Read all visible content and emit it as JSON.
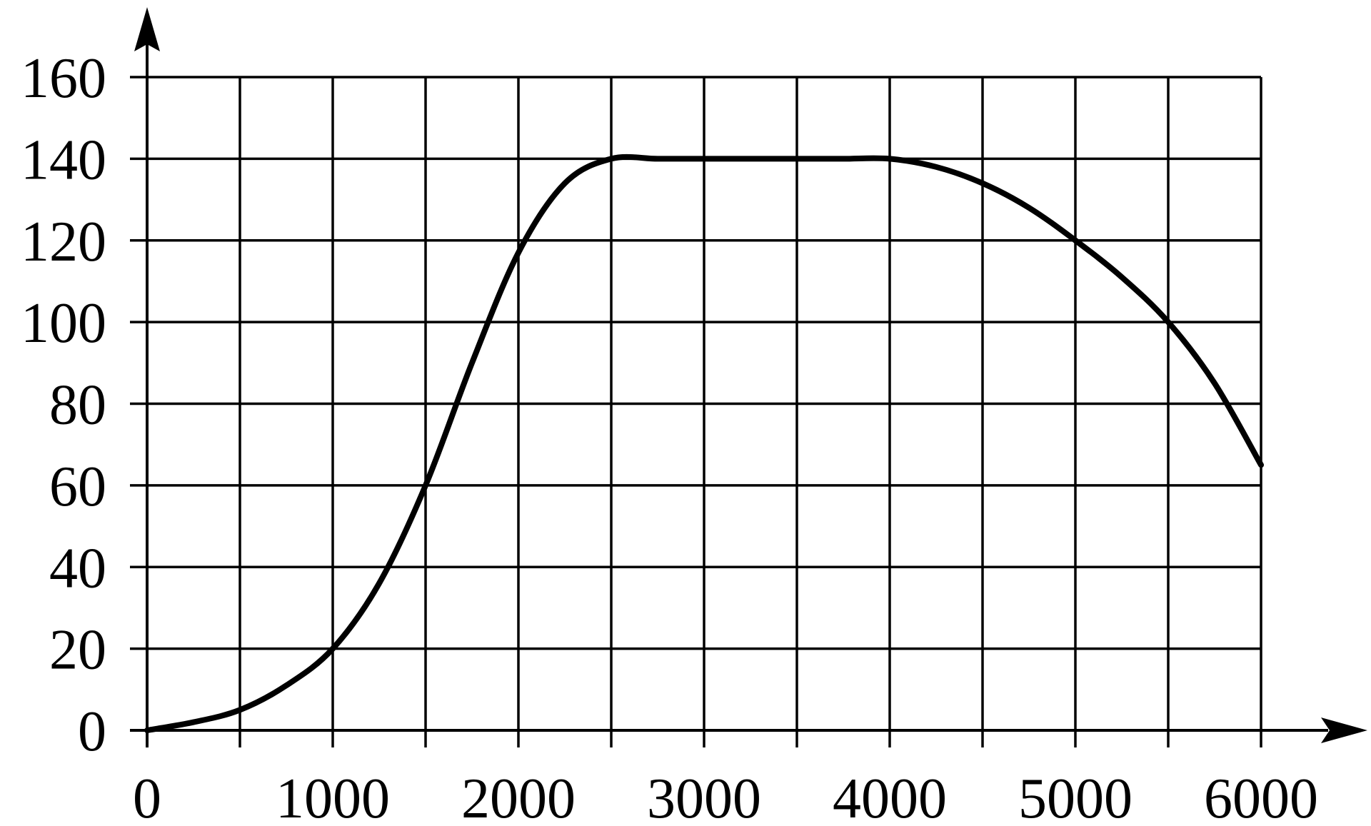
{
  "chart_data": {
    "type": "line",
    "title": "",
    "xlabel": "",
    "ylabel": "",
    "xlim": [
      0,
      6000
    ],
    "ylim": [
      0,
      160
    ],
    "x_ticks": [
      0,
      1000,
      2000,
      3000,
      4000,
      5000,
      6000
    ],
    "x_tick_labels": [
      "0",
      "1000",
      "2000",
      "3000",
      "4000",
      "5000",
      "6000"
    ],
    "y_ticks": [
      0,
      20,
      40,
      60,
      80,
      100,
      120,
      140,
      160
    ],
    "y_tick_labels": [
      "0",
      "20",
      "40",
      "60",
      "80",
      "100",
      "120",
      "140",
      "160"
    ],
    "x_grid_step": 500,
    "y_grid_step": 20,
    "grid": true,
    "axis_arrows": true,
    "line_color": "#000000",
    "series": [
      {
        "x": [
          0,
          250,
          500,
          750,
          1000,
          1250,
          1500,
          1750,
          2000,
          2250,
          2500,
          2750,
          3000,
          3250,
          3500,
          3750,
          4000,
          4250,
          4500,
          4750,
          5000,
          5250,
          5500,
          5750,
          6000
        ],
        "y": [
          0,
          2,
          5,
          11,
          20,
          36,
          60,
          90,
          117,
          134,
          140,
          140,
          140,
          140,
          140,
          140,
          140,
          138,
          134,
          128,
          120,
          111,
          100,
          85,
          65
        ]
      }
    ]
  }
}
